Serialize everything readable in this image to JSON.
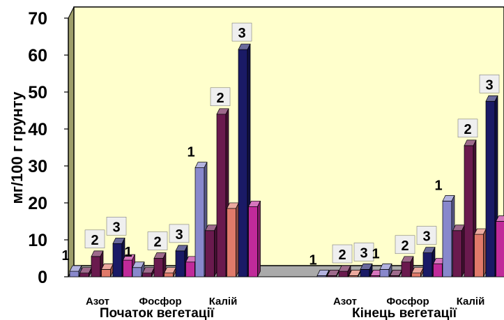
{
  "chart_data": {
    "type": "bar",
    "ylabel": "мг/100 г грунту",
    "ylim": [
      0,
      70
    ],
    "yticks": [
      0,
      10,
      20,
      30,
      40,
      50,
      60,
      70
    ],
    "grid": false,
    "plot_background": "#FFFFCC",
    "groups": [
      {
        "label": "Початок вегетації",
        "categories": [
          "Азот",
          "Фосфор",
          "Калій"
        ],
        "clusters": [
          {
            "category": "Азот",
            "bars": [
              {
                "marker": "1",
                "values": [
                  1.5,
                  1.0
                ]
              },
              {
                "marker": "2",
                "values": [
                  5.5,
                  2.0
                ]
              },
              {
                "marker": "3",
                "values": [
                  9.0,
                  4.5
                ]
              }
            ]
          },
          {
            "category": "Фосфор",
            "bars": [
              {
                "marker": "1",
                "values": [
                  2.5,
                  1.0
                ]
              },
              {
                "marker": "2",
                "values": [
                  5.0,
                  1.0
                ]
              },
              {
                "marker": "3",
                "values": [
                  7.0,
                  4.0
                ]
              }
            ]
          },
          {
            "category": "Калій",
            "bars": [
              {
                "marker": "1",
                "values": [
                  29.5,
                  12.5
                ]
              },
              {
                "marker": "2",
                "values": [
                  44.0,
                  18.5
                ]
              },
              {
                "marker": "3",
                "values": [
                  61.5,
                  19.0
                ]
              }
            ]
          }
        ]
      },
      {
        "label": "Кінець вегетації",
        "categories": [
          "Азот",
          "Фосфор",
          "Калій"
        ],
        "clusters": [
          {
            "category": "Азот",
            "bars": [
              {
                "marker": "1",
                "values": [
                  0.3,
                  0.3
                ]
              },
              {
                "marker": "2",
                "values": [
                  1.5,
                  0.3
                ]
              },
              {
                "marker": "3",
                "values": [
                  2.0,
                  0.3
                ]
              }
            ]
          },
          {
            "category": "Фосфор",
            "bars": [
              {
                "marker": "1",
                "values": [
                  2.0,
                  0.3
                ]
              },
              {
                "marker": "2",
                "values": [
                  4.0,
                  1.0
                ]
              },
              {
                "marker": "3",
                "values": [
                  6.5,
                  3.5
                ]
              }
            ]
          },
          {
            "category": "Калій",
            "bars": [
              {
                "marker": "1",
                "values": [
                  20.5,
                  12.5
                ]
              },
              {
                "marker": "2",
                "values": [
                  35.5,
                  11.5
                ]
              },
              {
                "marker": "3",
                "values": [
                  47.5,
                  15.0
                ]
              }
            ]
          }
        ]
      }
    ],
    "colors": {
      "bar1_front": [
        "#8888CC",
        "#6A1A4E"
      ],
      "bar2_front": [
        "#6A1A4E",
        "#E07A6A"
      ],
      "bar3_front": [
        "#1A1A66",
        "#C02A9A"
      ]
    }
  }
}
